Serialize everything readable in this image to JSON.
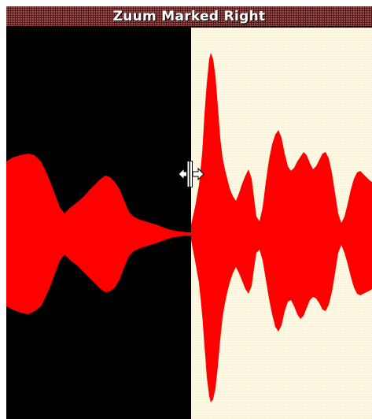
{
  "window": {
    "title": "Zuum Marked Right"
  },
  "colors": {
    "waveform": "#ff0000",
    "left_background": "#000000",
    "right_background": "#fffbe6",
    "title_bar": "#5a1414"
  },
  "icons": {
    "cursor": "split-resize-cursor-icon"
  }
}
